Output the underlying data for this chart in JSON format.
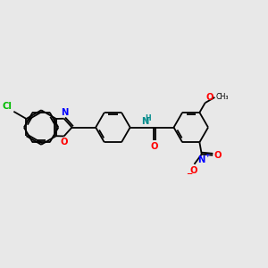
{
  "bg_color": "#e8e8e8",
  "bond_color": "#000000",
  "atom_colors": {
    "Cl": "#00bb00",
    "N": "#0000ff",
    "O": "#ff0000",
    "NH": "#008b8b"
  },
  "lw": 1.3,
  "fs": 7.2
}
